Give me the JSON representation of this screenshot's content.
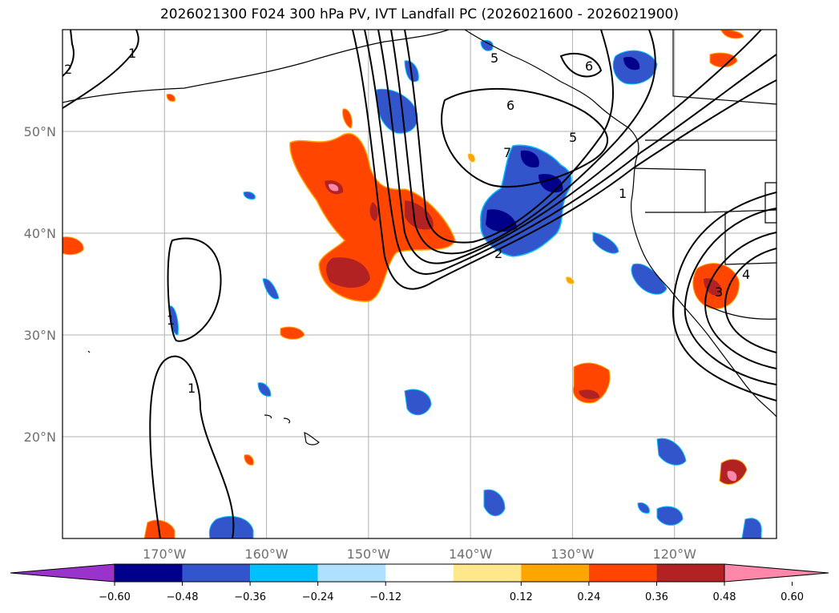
{
  "title": "2026021300 F024 300 hPa PV, IVT Landfall PC (2026021600 - 2026021900)",
  "map": {
    "lon_range": [
      -180,
      -110
    ],
    "lat_range": [
      10,
      60
    ],
    "lat_ticks": [
      {
        "value": 20,
        "label": "20°N"
      },
      {
        "value": 30,
        "label": "30°N"
      },
      {
        "value": 40,
        "label": "40°N"
      },
      {
        "value": 50,
        "label": "50°N"
      }
    ],
    "lon_ticks": [
      {
        "value": -170,
        "label": "170°W"
      },
      {
        "value": -160,
        "label": "160°W"
      },
      {
        "value": -150,
        "label": "150°W"
      },
      {
        "value": -140,
        "label": "140°W"
      },
      {
        "value": -130,
        "label": "130°W"
      },
      {
        "value": -120,
        "label": "120°W"
      }
    ],
    "grid": true,
    "contour_labels": [
      "1",
      "1",
      "1",
      "2",
      "5",
      "6",
      "6",
      "5",
      "1",
      "7",
      "2",
      "3",
      "4"
    ]
  },
  "colorbar": {
    "ticks": [
      "−0.60",
      "−0.48",
      "−0.36",
      "−0.24",
      "−0.12",
      "0.12",
      "0.24",
      "0.36",
      "0.48",
      "0.60"
    ],
    "colors": [
      "#9933cc",
      "#00008b",
      "#3355cc",
      "#00bfff",
      "#b0e0ff",
      "#ffffff",
      "#ffe88c",
      "#ffa500",
      "#ff4500",
      "#b22222",
      "#ff88aa"
    ],
    "extend": "both"
  }
}
